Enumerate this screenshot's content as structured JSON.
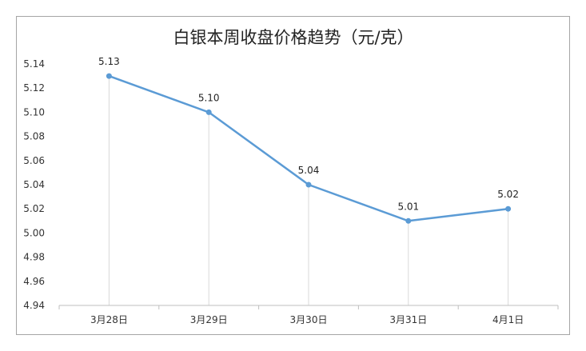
{
  "chart_data": {
    "type": "line",
    "title": "白银本周收盘价格趋势（元/克）",
    "categories": [
      "3月28日",
      "3月29日",
      "3月30日",
      "3月31日",
      "4月1日"
    ],
    "series": [
      {
        "values": [
          5.13,
          5.1,
          5.04,
          5.01,
          5.02
        ],
        "labels": [
          "5.13",
          "5.10",
          "5.04",
          "5.01",
          "5.02"
        ]
      }
    ],
    "y_ticks": [
      "4.94",
      "4.96",
      "4.98",
      "5.00",
      "5.02",
      "5.04",
      "5.06",
      "5.08",
      "5.10",
      "5.12",
      "5.14"
    ],
    "ylim": [
      4.94,
      5.14
    ],
    "grid": false,
    "drop_lines": true,
    "line_color": "#5B9BD5",
    "drop_line_color": "#D9D9D9",
    "axis_color": "#BFBFBF",
    "frame_color": "#A6A6A6"
  }
}
